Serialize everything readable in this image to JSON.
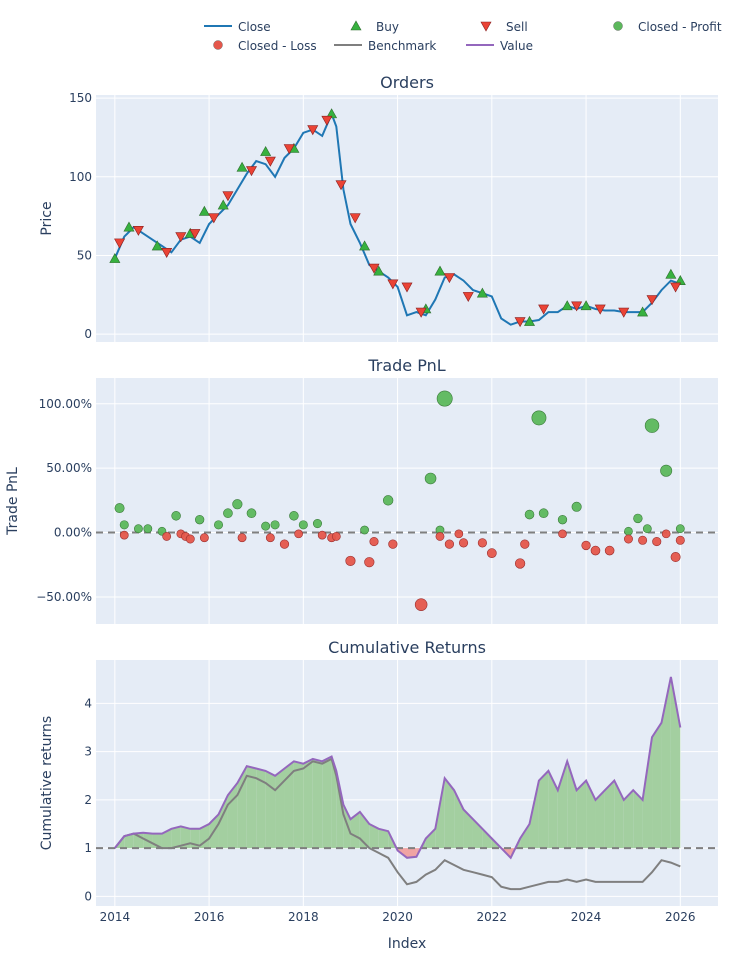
{
  "legend": {
    "placement": "top",
    "items": [
      {
        "label": "Close",
        "kind": "line",
        "color": "#1f77b4"
      },
      {
        "label": "Buy",
        "kind": "triangle-up",
        "color": "#37b13f"
      },
      {
        "label": "Sell",
        "kind": "triangle-down",
        "color": "#ea4335"
      },
      {
        "label": "Closed - Profit",
        "kind": "circle",
        "color": "#5cb85c"
      },
      {
        "label": "Closed - Loss",
        "kind": "circle",
        "color": "#e5574b"
      },
      {
        "label": "Benchmark",
        "kind": "line",
        "color": "#7f7f7f"
      },
      {
        "label": "Value",
        "kind": "line",
        "color": "#9467bd"
      }
    ]
  },
  "colors": {
    "plot_bg": "#e5ecf6",
    "grid": "#ffffff",
    "text": "#2a3f5f",
    "close": "#1f77b4",
    "buy": "#37b13f",
    "sell": "#ea4335",
    "profit": "#5cb85c",
    "loss": "#e5574b",
    "benchmark": "#7f7f7f",
    "value": "#9467bd",
    "fill_gain": "#a3cfa0",
    "fill_loss": "#f0a3a3"
  },
  "chart_data": [
    {
      "type": "line",
      "title": "Orders",
      "ylabel": "Price",
      "xlim": [
        2013.6,
        2026.8
      ],
      "ylim": [
        -5,
        152
      ],
      "yticks": [
        0,
        50,
        100,
        150
      ],
      "series": [
        {
          "name": "Close",
          "x": [
            2014.0,
            2014.2,
            2014.4,
            2014.6,
            2014.8,
            2015.0,
            2015.2,
            2015.4,
            2015.6,
            2015.8,
            2016.0,
            2016.2,
            2016.4,
            2016.6,
            2016.8,
            2017.0,
            2017.2,
            2017.4,
            2017.6,
            2017.8,
            2018.0,
            2018.2,
            2018.4,
            2018.6,
            2018.7,
            2018.85,
            2019.0,
            2019.2,
            2019.4,
            2019.6,
            2019.8,
            2020.0,
            2020.2,
            2020.4,
            2020.6,
            2020.8,
            2021.0,
            2021.2,
            2021.4,
            2021.6,
            2021.8,
            2022.0,
            2022.2,
            2022.4,
            2022.6,
            2022.8,
            2023.0,
            2023.2,
            2023.4,
            2023.6,
            2023.8,
            2024.0,
            2024.2,
            2024.4,
            2024.6,
            2024.8,
            2025.0,
            2025.2,
            2025.4,
            2025.6,
            2025.8,
            2026.0
          ],
          "y": [
            48,
            62,
            68,
            64,
            60,
            56,
            52,
            60,
            62,
            58,
            70,
            76,
            82,
            92,
            102,
            110,
            108,
            100,
            112,
            118,
            128,
            130,
            126,
            140,
            132,
            92,
            70,
            58,
            44,
            40,
            36,
            30,
            12,
            14,
            12,
            22,
            36,
            38,
            34,
            28,
            26,
            24,
            10,
            6,
            8,
            8,
            9,
            14,
            14,
            18,
            16,
            18,
            16,
            15,
            15,
            14,
            14,
            14,
            20,
            28,
            34,
            32
          ]
        }
      ],
      "buy": {
        "x": [
          2014.0,
          2014.3,
          2014.9,
          2015.6,
          2015.9,
          2016.3,
          2016.7,
          2017.2,
          2017.8,
          2018.6,
          2019.3,
          2019.6,
          2020.6,
          2020.9,
          2021.8,
          2022.8,
          2023.6,
          2024.0,
          2025.2,
          2025.8,
          2026.0
        ],
        "y": [
          48,
          68,
          56,
          64,
          78,
          82,
          106,
          116,
          118,
          140,
          56,
          40,
          16,
          40,
          26,
          8,
          18,
          18,
          14,
          38,
          34
        ]
      },
      "sell": {
        "x": [
          2014.1,
          2014.5,
          2015.1,
          2015.4,
          2015.7,
          2016.1,
          2016.4,
          2016.9,
          2017.3,
          2017.7,
          2018.2,
          2018.5,
          2018.8,
          2019.1,
          2019.5,
          2019.9,
          2020.2,
          2020.5,
          2021.1,
          2021.5,
          2022.6,
          2023.1,
          2023.8,
          2024.3,
          2024.8,
          2025.4,
          2025.9
        ],
        "y": [
          58,
          66,
          52,
          62,
          64,
          74,
          88,
          104,
          110,
          118,
          130,
          136,
          95,
          74,
          42,
          32,
          30,
          14,
          36,
          24,
          8,
          16,
          18,
          16,
          14,
          22,
          30
        ]
      }
    },
    {
      "type": "scatter",
      "title": "Trade PnL",
      "ylabel": "Trade PnL",
      "xlim": [
        2013.6,
        2026.8
      ],
      "ylim": [
        -0.71,
        1.2
      ],
      "yticks": [
        -0.5,
        0,
        0.5,
        1
      ],
      "ytick_labels": [
        "−50.00%",
        "0.00%",
        "50.00%",
        "100.00%"
      ],
      "baseline": 0,
      "profit": {
        "x": [
          2014.1,
          2014.2,
          2014.5,
          2014.7,
          2015.0,
          2015.3,
          2015.8,
          2016.2,
          2016.4,
          2016.6,
          2016.9,
          2017.2,
          2017.4,
          2017.8,
          2018.0,
          2018.3,
          2019.3,
          2019.8,
          2020.7,
          2020.9,
          2021.0,
          2022.8,
          2023.0,
          2023.1,
          2023.5,
          2023.8,
          2024.9,
          2025.1,
          2025.3,
          2025.4,
          2025.7,
          2026.0
        ],
        "y": [
          0.19,
          0.06,
          0.03,
          0.03,
          0.01,
          0.13,
          0.1,
          0.06,
          0.15,
          0.22,
          0.15,
          0.05,
          0.06,
          0.13,
          0.06,
          0.07,
          0.02,
          0.25,
          0.42,
          0.02,
          1.04,
          0.14,
          0.89,
          0.15,
          0.1,
          0.2,
          0.01,
          0.11,
          0.03,
          0.83,
          0.48,
          0.03
        ]
      },
      "loss": {
        "x": [
          2014.2,
          2015.1,
          2015.4,
          2015.5,
          2015.6,
          2015.9,
          2016.7,
          2017.3,
          2017.6,
          2017.9,
          2018.4,
          2018.6,
          2018.7,
          2019.0,
          2019.4,
          2019.5,
          2019.9,
          2020.5,
          2020.9,
          2021.1,
          2021.3,
          2021.4,
          2021.8,
          2022.0,
          2022.6,
          2022.7,
          2023.5,
          2024.0,
          2024.2,
          2024.5,
          2024.9,
          2025.2,
          2025.5,
          2025.7,
          2025.9,
          2026.0
        ],
        "y": [
          -0.02,
          -0.03,
          -0.01,
          -0.03,
          -0.05,
          -0.04,
          -0.04,
          -0.04,
          -0.09,
          -0.01,
          -0.02,
          -0.04,
          -0.03,
          -0.22,
          -0.23,
          -0.07,
          -0.09,
          -0.56,
          -0.03,
          -0.09,
          -0.01,
          -0.08,
          -0.08,
          -0.16,
          -0.24,
          -0.09,
          -0.01,
          -0.1,
          -0.14,
          -0.14,
          -0.05,
          -0.06,
          -0.07,
          -0.01,
          -0.19,
          -0.06
        ]
      }
    },
    {
      "type": "area",
      "title": "Cumulative Returns",
      "ylabel": "Cumulative returns",
      "xlabel": "Index",
      "xlim": [
        2013.6,
        2026.8
      ],
      "ylim": [
        -0.2,
        4.9
      ],
      "yticks": [
        0,
        1,
        2,
        3,
        4
      ],
      "xticks": [
        2014,
        2016,
        2018,
        2020,
        2022,
        2024,
        2026
      ],
      "baseline": 1,
      "x": [
        2014.0,
        2014.2,
        2014.4,
        2014.6,
        2014.8,
        2015.0,
        2015.2,
        2015.4,
        2015.6,
        2015.8,
        2016.0,
        2016.2,
        2016.4,
        2016.6,
        2016.8,
        2017.0,
        2017.2,
        2017.4,
        2017.6,
        2017.8,
        2018.0,
        2018.2,
        2018.4,
        2018.6,
        2018.7,
        2018.85,
        2019.0,
        2019.2,
        2019.4,
        2019.6,
        2019.8,
        2020.0,
        2020.2,
        2020.4,
        2020.6,
        2020.8,
        2021.0,
        2021.2,
        2021.4,
        2021.6,
        2021.8,
        2022.0,
        2022.2,
        2022.4,
        2022.6,
        2022.8,
        2023.0,
        2023.2,
        2023.4,
        2023.6,
        2023.8,
        2024.0,
        2024.2,
        2024.4,
        2024.6,
        2024.8,
        2025.0,
        2025.2,
        2025.4,
        2025.6,
        2025.8,
        2026.0
      ],
      "series": [
        {
          "name": "Value",
          "values": [
            1.0,
            1.25,
            1.3,
            1.32,
            1.3,
            1.3,
            1.4,
            1.45,
            1.4,
            1.4,
            1.5,
            1.7,
            2.1,
            2.35,
            2.7,
            2.65,
            2.6,
            2.5,
            2.65,
            2.8,
            2.75,
            2.85,
            2.8,
            2.9,
            2.6,
            1.9,
            1.6,
            1.75,
            1.5,
            1.4,
            1.35,
            0.95,
            0.8,
            0.82,
            1.2,
            1.4,
            2.45,
            2.2,
            1.8,
            1.6,
            1.4,
            1.2,
            1.0,
            0.8,
            1.2,
            1.5,
            2.4,
            2.6,
            2.2,
            2.8,
            2.2,
            2.4,
            2.0,
            2.2,
            2.4,
            2.0,
            2.2,
            2.0,
            3.3,
            3.6,
            4.55,
            3.5
          ]
        },
        {
          "name": "Benchmark",
          "values": [
            1.0,
            1.25,
            1.3,
            1.2,
            1.1,
            1.0,
            1.0,
            1.05,
            1.1,
            1.05,
            1.2,
            1.5,
            1.9,
            2.1,
            2.5,
            2.45,
            2.35,
            2.2,
            2.4,
            2.6,
            2.65,
            2.8,
            2.75,
            2.85,
            2.5,
            1.7,
            1.3,
            1.2,
            1.0,
            0.9,
            0.8,
            0.5,
            0.25,
            0.3,
            0.45,
            0.55,
            0.75,
            0.65,
            0.55,
            0.5,
            0.45,
            0.4,
            0.2,
            0.15,
            0.15,
            0.2,
            0.25,
            0.3,
            0.3,
            0.35,
            0.3,
            0.35,
            0.3,
            0.3,
            0.3,
            0.3,
            0.3,
            0.3,
            0.5,
            0.75,
            0.7,
            0.62
          ]
        }
      ]
    }
  ]
}
